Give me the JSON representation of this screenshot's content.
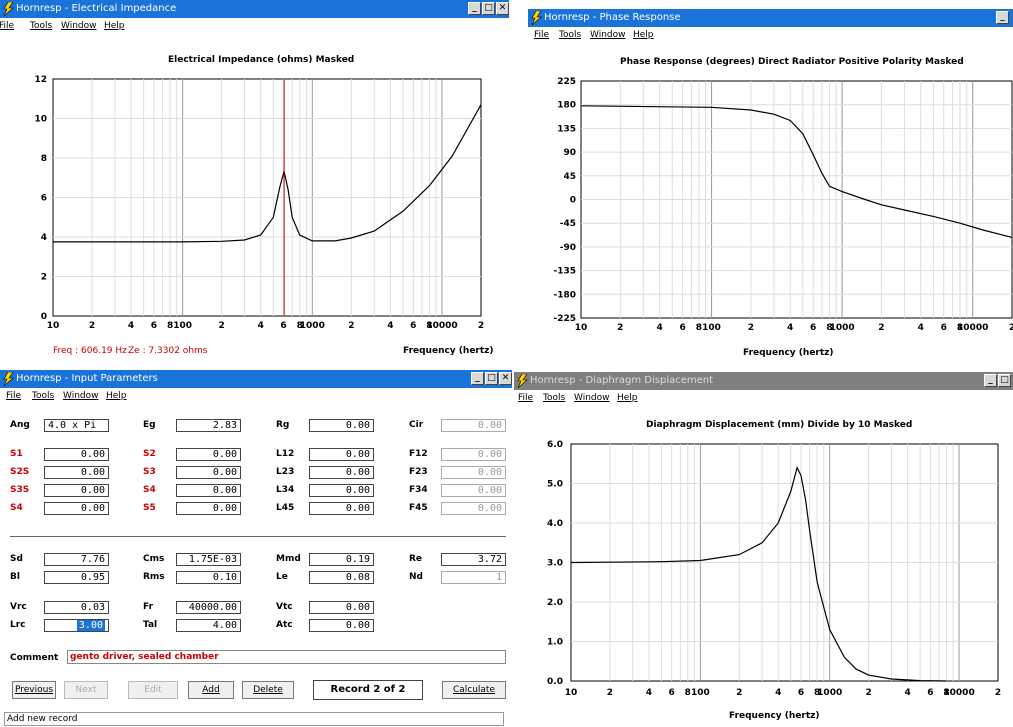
{
  "colors": {
    "title_active": "#1a73d9",
    "title_inactive": "#7f7f7f",
    "label_red": "#cc0000",
    "marker": "#cc0000"
  },
  "menus": [
    "File",
    "Tools",
    "Window",
    "Help"
  ],
  "impedance": {
    "window_title": "Hornresp - Electrical Impedance",
    "plot_title": "Electrical Impedance (ohms)   Masked",
    "y_ticks": [
      "12",
      "10",
      "8",
      "6",
      "4",
      "2",
      "0"
    ],
    "x_ticks": [
      "10",
      "2",
      "4",
      "6",
      "8",
      "100",
      "2",
      "4",
      "6",
      "8",
      "1000",
      "2",
      "4",
      "6",
      "8",
      "10000",
      "2"
    ],
    "freq_readout": "Freq : 606.19 Hz",
    "ze_readout": "Ze : 7.3302 ohms",
    "x_label": "Frequency (hertz)",
    "chart_data": {
      "type": "line",
      "x_scale": "log",
      "xlim": [
        10,
        20000
      ],
      "ylim": [
        0,
        12
      ],
      "cursor_hz": 606.19,
      "x": [
        10,
        100,
        200,
        300,
        400,
        500,
        560,
        606,
        650,
        700,
        800,
        1000,
        1500,
        2000,
        3000,
        5000,
        8000,
        12000,
        20000
      ],
      "y": [
        3.75,
        3.75,
        3.78,
        3.85,
        4.1,
        5.0,
        6.5,
        7.33,
        6.4,
        5.0,
        4.1,
        3.8,
        3.8,
        3.95,
        4.3,
        5.3,
        6.6,
        8.1,
        10.7
      ]
    }
  },
  "phase": {
    "window_title": "Hornresp - Phase Response",
    "plot_title": "Phase Response (degrees)   Direct Radiator   Positive Polarity   Masked",
    "y_ticks": [
      "225",
      "180",
      "135",
      "90",
      "45",
      "0",
      "-45",
      "-90",
      "-135",
      "-180",
      "-225"
    ],
    "x_ticks": [
      "10",
      "2",
      "4",
      "6",
      "8",
      "100",
      "2",
      "4",
      "6",
      "8",
      "1000",
      "2",
      "4",
      "6",
      "8",
      "10000",
      "2"
    ],
    "x_label": "Frequency (hertz)",
    "chart_data": {
      "type": "line",
      "x_scale": "log",
      "xlim": [
        10,
        20000
      ],
      "ylim": [
        -225,
        225
      ],
      "x": [
        10,
        100,
        200,
        300,
        400,
        500,
        600,
        700,
        800,
        1000,
        1500,
        2000,
        3000,
        5000,
        8000,
        12000,
        20000
      ],
      "y": [
        178,
        175,
        170,
        162,
        150,
        125,
        85,
        50,
        25,
        15,
        0,
        -10,
        -20,
        -32,
        -45,
        -58,
        -72
      ]
    }
  },
  "input": {
    "window_title": "Hornresp - Input Parameters",
    "rows_top": [
      {
        "labels": [
          "Ang",
          "Eg",
          "Rg",
          "Cir"
        ],
        "values": [
          "4.0 x Pi",
          "2.83",
          "0.00",
          "0.00"
        ]
      },
      {
        "labels": [
          "S1",
          "S2",
          "L12",
          "F12"
        ],
        "values": [
          "0.00",
          "0.00",
          "0.00",
          "0.00"
        ]
      },
      {
        "labels": [
          "S2S",
          "S3",
          "L23",
          "F23"
        ],
        "values": [
          "0.00",
          "0.00",
          "0.00",
          "0.00"
        ]
      },
      {
        "labels": [
          "S3S",
          "S4",
          "L34",
          "F34"
        ],
        "values": [
          "0.00",
          "0.00",
          "0.00",
          "0.00"
        ]
      },
      {
        "labels": [
          "S4",
          "S5",
          "L45",
          "F45"
        ],
        "values": [
          "0.00",
          "0.00",
          "0.00",
          "0.00"
        ]
      }
    ],
    "rows_bottom": [
      {
        "labels": [
          "Sd",
          "Cms",
          "Mmd",
          "Re"
        ],
        "values": [
          "7.76",
          "1.75E-03",
          "0.19",
          "3.72"
        ]
      },
      {
        "labels": [
          "Bl",
          "Rms",
          "Le",
          "Nd"
        ],
        "values": [
          "0.95",
          "0.10",
          "0.08",
          "1"
        ]
      },
      {
        "labels": [
          "Vrc",
          "Fr",
          "Vtc"
        ],
        "values": [
          "0.03",
          "40000.00",
          "0.00"
        ]
      },
      {
        "labels": [
          "Lrc",
          "Tal",
          "Atc"
        ],
        "values": [
          "3.00",
          "4.00",
          "0.00"
        ]
      }
    ],
    "comment_label": "Comment",
    "comment_value": "gento driver, sealed chamber",
    "buttons": {
      "previous": "Previous",
      "next": "Next",
      "edit": "Edit",
      "add": "Add",
      "delete": "Delete",
      "calculate": "Calculate"
    },
    "record": "Record 2 of 2",
    "status": "Add new record"
  },
  "displacement": {
    "window_title": "Hornresp - Diaphragm Displacement",
    "plot_title": "Diaphragm Displacement (mm)   Divide by 10   Masked",
    "y_ticks": [
      "6.0",
      "5.0",
      "4.0",
      "3.0",
      "2.0",
      "1.0",
      "0.0"
    ],
    "x_ticks": [
      "10",
      "2",
      "4",
      "6",
      "8",
      "100",
      "2",
      "4",
      "6",
      "8",
      "1000",
      "2",
      "4",
      "6",
      "8",
      "10000",
      "2"
    ],
    "x_label": "Frequency (hertz)",
    "chart_data": {
      "type": "line",
      "x_scale": "log",
      "xlim": [
        10,
        20000
      ],
      "ylim": [
        0,
        6
      ],
      "x": [
        10,
        50,
        100,
        200,
        300,
        400,
        500,
        560,
        600,
        650,
        700,
        800,
        1000,
        1300,
        1600,
        2000,
        3000,
        5000,
        8000
      ],
      "y": [
        3.0,
        3.02,
        3.05,
        3.2,
        3.5,
        4.0,
        4.8,
        5.4,
        5.2,
        4.6,
        3.8,
        2.5,
        1.3,
        0.6,
        0.3,
        0.15,
        0.05,
        0.01,
        0.0
      ]
    }
  }
}
